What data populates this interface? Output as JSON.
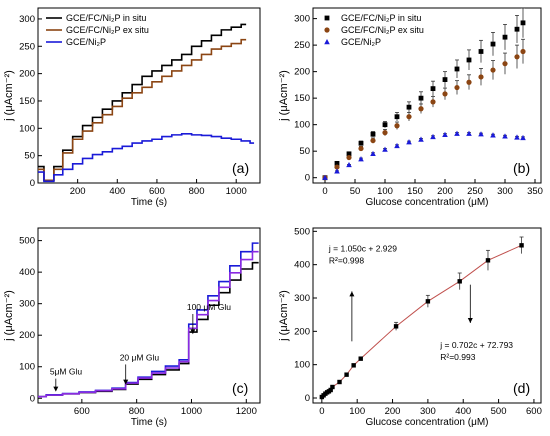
{
  "chart_data": [
    {
      "panel": "(a)",
      "type": "line",
      "xlabel": "Time (s)",
      "ylabel": "j (μAcm⁻²)",
      "xlim": [
        0,
        1120
      ],
      "ylim": [
        0,
        320
      ],
      "xticks": [
        200,
        400,
        600,
        800,
        1000
      ],
      "yticks": [
        0,
        50,
        100,
        150,
        200,
        250,
        300
      ],
      "legend_position": "top-left",
      "series": [
        {
          "name": "GCE/FC/Ni₂P in situ",
          "color": "#000000",
          "x": [
            0,
            60,
            100,
            150,
            200,
            250,
            300,
            350,
            400,
            450,
            500,
            550,
            600,
            650,
            700,
            750,
            800,
            850,
            900,
            950,
            1000,
            1050
          ],
          "y": [
            30,
            5,
            30,
            60,
            85,
            105,
            120,
            135,
            150,
            165,
            180,
            195,
            205,
            215,
            225,
            235,
            250,
            260,
            270,
            280,
            285,
            290
          ]
        },
        {
          "name": "GCE/FC/Ni₂P ex situ",
          "color": "#8B4513",
          "x": [
            0,
            60,
            100,
            150,
            200,
            250,
            300,
            350,
            400,
            450,
            500,
            550,
            600,
            650,
            700,
            750,
            800,
            850,
            900,
            950,
            1000,
            1050
          ],
          "y": [
            25,
            5,
            25,
            55,
            80,
            95,
            110,
            125,
            140,
            155,
            165,
            175,
            185,
            195,
            205,
            215,
            225,
            235,
            245,
            250,
            255,
            262
          ]
        },
        {
          "name": "GCE/Ni₂P",
          "color": "#1a1ad8",
          "x": [
            0,
            60,
            100,
            150,
            200,
            250,
            300,
            350,
            400,
            450,
            500,
            550,
            600,
            650,
            700,
            750,
            800,
            850,
            900,
            950,
            1000,
            1050,
            1090
          ],
          "y": [
            20,
            3,
            15,
            25,
            35,
            45,
            52,
            57,
            63,
            67,
            73,
            77,
            80,
            85,
            88,
            90,
            88,
            87,
            85,
            82,
            80,
            77,
            73
          ]
        }
      ]
    },
    {
      "panel": "(b)",
      "type": "scatter",
      "xlabel": "Glucose concentration (μM)",
      "ylabel": "j (μAcm⁻²)",
      "xlim": [
        -20,
        360
      ],
      "ylim": [
        -10,
        320
      ],
      "xticks": [
        0,
        50,
        100,
        150,
        200,
        250,
        300,
        350
      ],
      "yticks": [
        0,
        50,
        100,
        150,
        200,
        250,
        300
      ],
      "legend_position": "top-left",
      "series": [
        {
          "name": "GCE/FC/Ni₂P in situ",
          "marker": "square",
          "color": "#000000",
          "x": [
            0,
            20,
            40,
            60,
            80,
            100,
            120,
            140,
            160,
            180,
            200,
            220,
            240,
            260,
            280,
            300,
            320,
            330
          ],
          "y": [
            0,
            27,
            45,
            65,
            82,
            100,
            115,
            133,
            150,
            168,
            185,
            205,
            222,
            238,
            252,
            265,
            280,
            292
          ],
          "err": [
            0,
            2,
            3,
            4,
            5,
            6,
            8,
            10,
            12,
            14,
            15,
            17,
            19,
            21,
            22,
            24,
            26,
            28
          ]
        },
        {
          "name": "GCE/FC/Ni₂P ex situ",
          "marker": "circle",
          "color": "#8B4513",
          "x": [
            0,
            20,
            40,
            60,
            80,
            100,
            120,
            140,
            160,
            180,
            200,
            220,
            240,
            260,
            280,
            300,
            320,
            330
          ],
          "y": [
            0,
            20,
            38,
            55,
            70,
            85,
            98,
            115,
            130,
            143,
            158,
            170,
            180,
            190,
            203,
            215,
            228,
            238
          ],
          "err": [
            0,
            2,
            3,
            4,
            5,
            6,
            7,
            8,
            9,
            10,
            11,
            13,
            14,
            16,
            18,
            20,
            22,
            23
          ]
        },
        {
          "name": "GCE/Ni₂P",
          "marker": "triangle",
          "color": "#1a1ad8",
          "x": [
            0,
            20,
            40,
            60,
            80,
            100,
            120,
            140,
            160,
            180,
            200,
            220,
            240,
            260,
            280,
            300,
            320,
            330
          ],
          "y": [
            0,
            12,
            24,
            35,
            45,
            53,
            60,
            67,
            72,
            77,
            81,
            83,
            83,
            82,
            80,
            78,
            76,
            75
          ],
          "err": [
            0,
            1,
            1,
            2,
            2,
            2,
            2,
            2,
            2,
            2,
            2,
            2,
            2,
            2,
            2,
            2,
            2,
            2
          ]
        }
      ]
    },
    {
      "panel": "(c)",
      "type": "line",
      "xlabel": "Time (s)",
      "ylabel": "j (μAcm⁻²)",
      "xlim": [
        440,
        1250
      ],
      "ylim": [
        -15,
        540
      ],
      "xticks": [
        600,
        800,
        1000,
        1200
      ],
      "yticks": [
        0,
        100,
        200,
        300,
        400,
        500
      ],
      "annotations": [
        {
          "text": "5μM Glu",
          "x": 505,
          "y": 75,
          "arrow_to": [
            505,
            18
          ]
        },
        {
          "text": "20 μM Glu",
          "x": 760,
          "y": 120,
          "arrow_to": [
            760,
            40
          ]
        },
        {
          "text": "100 μM Glu",
          "x": 1005,
          "y": 280,
          "arrow_to": [
            1005,
            200
          ]
        }
      ],
      "series": [
        {
          "name": "",
          "color": "#000000",
          "x": [
            440,
            500,
            560,
            620,
            680,
            740,
            780,
            830,
            880,
            930,
            980,
            1000,
            1040,
            1080,
            1120,
            1160,
            1200,
            1245
          ],
          "y": [
            5,
            10,
            14,
            18,
            22,
            28,
            45,
            60,
            75,
            90,
            110,
            210,
            250,
            295,
            335,
            375,
            410,
            430
          ]
        },
        {
          "name": "",
          "color": "#1a1ad8",
          "x": [
            440,
            500,
            560,
            620,
            680,
            740,
            780,
            830,
            880,
            930,
            980,
            1000,
            1040,
            1080,
            1120,
            1160,
            1200,
            1245
          ],
          "y": [
            5,
            11,
            15,
            20,
            25,
            32,
            50,
            67,
            85,
            102,
            122,
            235,
            280,
            325,
            370,
            420,
            465,
            492
          ]
        },
        {
          "name": "",
          "color": "#8a2be2",
          "x": [
            440,
            500,
            560,
            620,
            680,
            740,
            780,
            830,
            880,
            930,
            980,
            1000,
            1040,
            1080,
            1120,
            1160,
            1200,
            1245
          ],
          "y": [
            5,
            10,
            14,
            19,
            24,
            30,
            48,
            64,
            80,
            96,
            116,
            222,
            265,
            310,
            352,
            398,
            440,
            465
          ]
        }
      ]
    },
    {
      "panel": "(d)",
      "type": "scatter",
      "xlabel": "Glucose concentration (μM)",
      "ylabel": "j (μAcm⁻²)",
      "xlim": [
        -25,
        620
      ],
      "ylim": [
        -15,
        510
      ],
      "xticks": [
        0,
        100,
        200,
        300,
        400,
        500,
        600
      ],
      "yticks": [
        0,
        100,
        200,
        300,
        400,
        500
      ],
      "points": {
        "x": [
          0,
          5,
          10,
          15,
          20,
          25,
          30,
          50,
          70,
          90,
          110,
          210,
          300,
          390,
          470,
          565
        ],
        "y": [
          3,
          8,
          13,
          17,
          20,
          24,
          33,
          48,
          70,
          98,
          118,
          215,
          290,
          350,
          413,
          458
        ],
        "err": [
          0,
          1,
          1,
          1,
          1,
          1,
          2,
          2,
          3,
          3,
          4,
          12,
          18,
          25,
          30,
          25
        ]
      },
      "annotations": [
        {
          "lines": [
            "j = 1.050c + 2.929",
            "R²=0.998"
          ],
          "x": 20,
          "y": 440
        },
        {
          "lines": [
            "j = 0.702c + 72.793",
            "R²=0.993"
          ],
          "x": 335,
          "y": 150
        }
      ],
      "arrows": [
        {
          "from": [
            85,
            170
          ],
          "to": [
            85,
            320
          ]
        },
        {
          "from": [
            420,
            340
          ],
          "to": [
            420,
            225
          ]
        }
      ]
    }
  ]
}
